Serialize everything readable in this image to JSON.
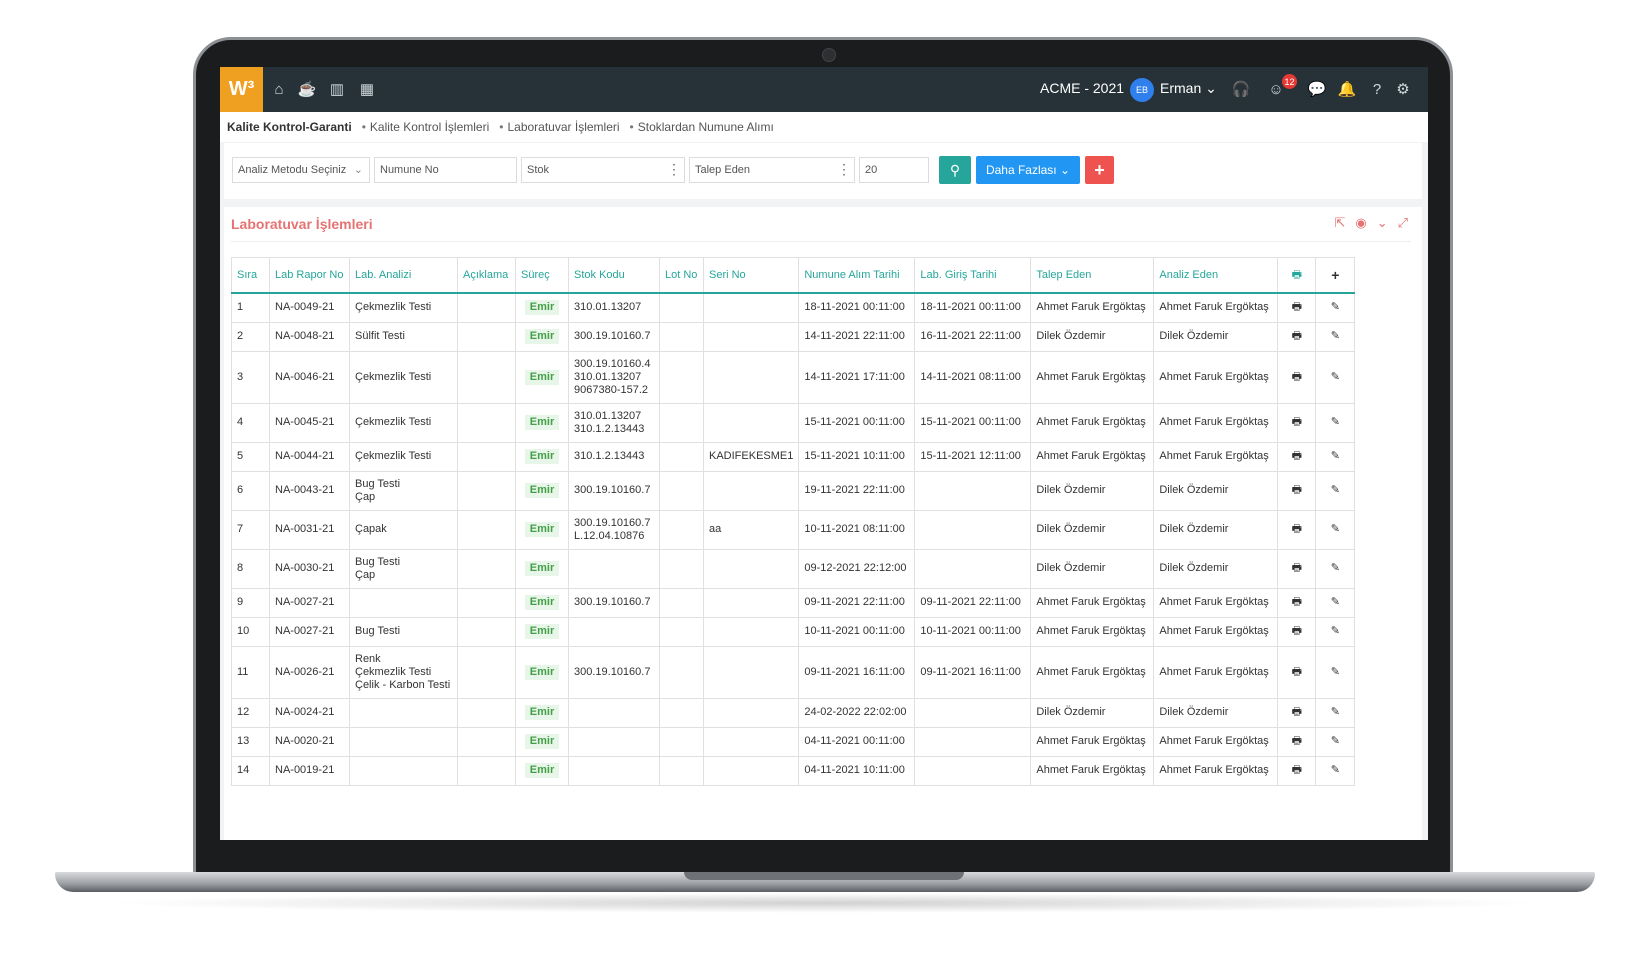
{
  "app": {
    "logo": "W³",
    "company": "ACME - 2021",
    "user_initials": "EB",
    "user_name": "Erman",
    "notification_count": "12",
    "nav_icons": [
      "home-icon",
      "coffee-icon",
      "chart-icon",
      "calendar-icon"
    ],
    "right_icons": [
      "headset-icon",
      "smile-icon",
      "chat-icon",
      "bell-icon",
      "help-icon",
      "gear-icon"
    ]
  },
  "breadcrumb": {
    "root": "Kalite Kontrol-Garanti",
    "items": [
      "Kalite Kontrol İşlemleri",
      "Laboratuvar İşlemleri",
      "Stoklardan Numune Alımı"
    ]
  },
  "filters": {
    "analysis_method": "Analiz Metodu Seçiniz",
    "sample_no": "Numune No",
    "stock": "Stok",
    "requester": "Talep Eden",
    "page_size": "20",
    "more_label": "Daha Fazlası",
    "add_label": "+"
  },
  "panel": {
    "title": "Laboratuvar İşlemleri",
    "tools": [
      "export-icon",
      "eye-icon",
      "chevron-down-icon",
      "expand-icon"
    ]
  },
  "table": {
    "columns": [
      "Sıra",
      "Lab Rapor No",
      "Lab. Analizi",
      "Açıklama",
      "Süreç",
      "Stok Kodu",
      "Lot No",
      "Seri No",
      "Numune Alım Tarihi",
      "Lab. Giriş Tarihi",
      "Talep Eden",
      "Analiz Eden",
      "🖶",
      "+"
    ],
    "rows": [
      {
        "no": "1",
        "report": "NA-0049-21",
        "analysis": [
          "Çekmezlik Testi"
        ],
        "desc": "",
        "process": "Emir",
        "stock": [
          "310.01.13207"
        ],
        "lot": "",
        "serial": "",
        "sample_date": "18-11-2021 00:11:00",
        "entry_date": "18-11-2021 00:11:00",
        "requester": "Ahmet Faruk Ergöktaş",
        "analyst": "Ahmet Faruk Ergöktaş"
      },
      {
        "no": "2",
        "report": "NA-0048-21",
        "analysis": [
          "Sülfit Testi"
        ],
        "desc": "",
        "process": "Emir",
        "stock": [
          "300.19.10160.7"
        ],
        "lot": "",
        "serial": "",
        "sample_date": "14-11-2021 22:11:00",
        "entry_date": "16-11-2021 22:11:00",
        "requester": "Dilek Özdemir",
        "analyst": "Dilek Özdemir"
      },
      {
        "no": "3",
        "report": "NA-0046-21",
        "analysis": [
          "Çekmezlik Testi"
        ],
        "desc": "",
        "process": "Emir",
        "stock": [
          "300.19.10160.4",
          "310.01.13207",
          "9067380-157.2"
        ],
        "lot": "",
        "serial": "",
        "sample_date": "14-11-2021 17:11:00",
        "entry_date": "14-11-2021 08:11:00",
        "requester": "Ahmet Faruk Ergöktaş",
        "analyst": "Ahmet Faruk Ergöktaş"
      },
      {
        "no": "4",
        "report": "NA-0045-21",
        "analysis": [
          "Çekmezlik Testi"
        ],
        "desc": "",
        "process": "Emir",
        "stock": [
          "310.01.13207",
          "310.1.2.13443"
        ],
        "lot": "",
        "serial": "",
        "sample_date": "15-11-2021 00:11:00",
        "entry_date": "15-11-2021 00:11:00",
        "requester": "Ahmet Faruk Ergöktaş",
        "analyst": "Ahmet Faruk Ergöktaş"
      },
      {
        "no": "5",
        "report": "NA-0044-21",
        "analysis": [
          "Çekmezlik Testi"
        ],
        "desc": "",
        "process": "Emir",
        "stock": [
          "310.1.2.13443"
        ],
        "lot": "",
        "serial": "KADIFEKESME1",
        "sample_date": "15-11-2021 10:11:00",
        "entry_date": "15-11-2021 12:11:00",
        "requester": "Ahmet Faruk Ergöktaş",
        "analyst": "Ahmet Faruk Ergöktaş"
      },
      {
        "no": "6",
        "report": "NA-0043-21",
        "analysis": [
          "Bug Testi",
          "Çap"
        ],
        "desc": "",
        "process": "Emir",
        "stock": [
          "300.19.10160.7"
        ],
        "lot": "",
        "serial": "",
        "sample_date": "19-11-2021 22:11:00",
        "entry_date": "",
        "requester": "Dilek Özdemir",
        "analyst": "Dilek Özdemir"
      },
      {
        "no": "7",
        "report": "NA-0031-21",
        "analysis": [
          "Çapak"
        ],
        "desc": "",
        "process": "Emir",
        "stock": [
          "300.19.10160.7",
          "L.12.04.10876"
        ],
        "lot": "",
        "serial": "aa",
        "sample_date": "10-11-2021 08:11:00",
        "entry_date": "",
        "requester": "Dilek Özdemir",
        "analyst": "Dilek Özdemir"
      },
      {
        "no": "8",
        "report": "NA-0030-21",
        "analysis": [
          "Bug Testi",
          "Çap"
        ],
        "desc": "",
        "process": "Emir",
        "stock": [],
        "lot": "",
        "serial": "",
        "sample_date": "09-12-2021 22:12:00",
        "entry_date": "",
        "requester": "Dilek Özdemir",
        "analyst": "Dilek Özdemir"
      },
      {
        "no": "9",
        "report": "NA-0027-21",
        "analysis": [],
        "desc": "",
        "process": "Emir",
        "stock": [
          "300.19.10160.7"
        ],
        "lot": "",
        "serial": "",
        "sample_date": "09-11-2021 22:11:00",
        "entry_date": "09-11-2021 22:11:00",
        "requester": "Ahmet Faruk Ergöktaş",
        "analyst": "Ahmet Faruk Ergöktaş"
      },
      {
        "no": "10",
        "report": "NA-0027-21",
        "analysis": [
          "Bug Testi"
        ],
        "desc": "",
        "process": "Emir",
        "stock": [],
        "lot": "",
        "serial": "",
        "sample_date": "10-11-2021 00:11:00",
        "entry_date": "10-11-2021 00:11:00",
        "requester": "Ahmet Faruk Ergöktaş",
        "analyst": "Ahmet Faruk Ergöktaş"
      },
      {
        "no": "11",
        "report": "NA-0026-21",
        "analysis": [
          "Renk",
          "Çekmezlik Testi",
          "Çelik - Karbon Testi"
        ],
        "desc": "",
        "process": "Emir",
        "stock": [
          "300.19.10160.7"
        ],
        "lot": "",
        "serial": "",
        "sample_date": "09-11-2021 16:11:00",
        "entry_date": "09-11-2021 16:11:00",
        "requester": "Ahmet Faruk Ergöktaş",
        "analyst": "Ahmet Faruk Ergöktaş"
      },
      {
        "no": "12",
        "report": "NA-0024-21",
        "analysis": [],
        "desc": "",
        "process": "Emir",
        "stock": [],
        "lot": "",
        "serial": "",
        "sample_date": "24-02-2022 22:02:00",
        "entry_date": "",
        "requester": "Dilek Özdemir",
        "analyst": "Dilek Özdemir"
      },
      {
        "no": "13",
        "report": "NA-0020-21",
        "analysis": [],
        "desc": "",
        "process": "Emir",
        "stock": [],
        "lot": "",
        "serial": "",
        "sample_date": "04-11-2021 00:11:00",
        "entry_date": "",
        "requester": "Ahmet Faruk Ergöktaş",
        "analyst": "Ahmet Faruk Ergöktaş"
      },
      {
        "no": "14",
        "report": "NA-0019-21",
        "analysis": [],
        "desc": "",
        "process": "Emir",
        "stock": [],
        "lot": "",
        "serial": "",
        "sample_date": "04-11-2021 10:11:00",
        "entry_date": "",
        "requester": "Ahmet Faruk Ergöktaş",
        "analyst": "Ahmet Faruk Ergöktaş"
      }
    ]
  }
}
